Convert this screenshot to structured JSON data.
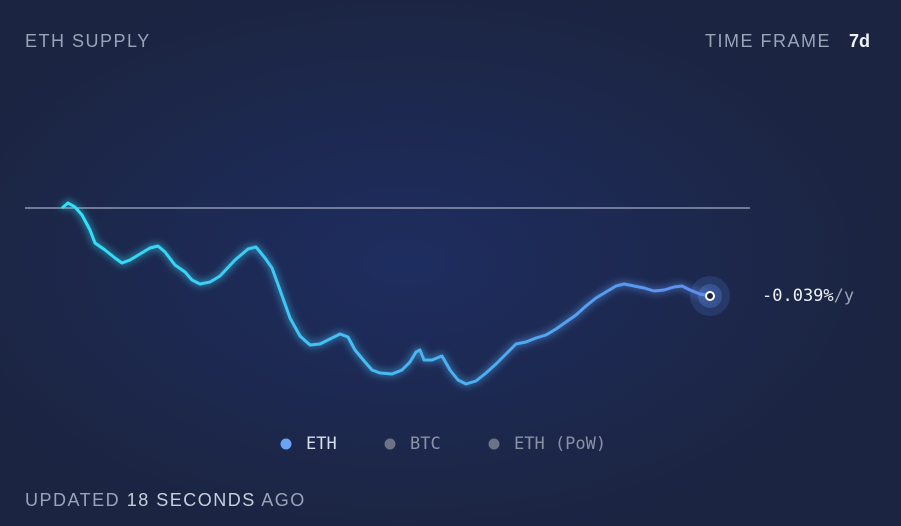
{
  "chart_data": {
    "type": "line",
    "title": "ETH SUPPLY",
    "timeframe_label": "TIME FRAME",
    "timeframe": "7d",
    "x": [
      0,
      6,
      13,
      20,
      28,
      33,
      43,
      53,
      60,
      68,
      78,
      88,
      96,
      103,
      113,
      123,
      130,
      138,
      148,
      158,
      173,
      186,
      194,
      203,
      210,
      218,
      228,
      238,
      248,
      258,
      268,
      278,
      286,
      293,
      303,
      310,
      318,
      330,
      340,
      348,
      354,
      358,
      362,
      370,
      380,
      388,
      396,
      404,
      414,
      424,
      434,
      444,
      454,
      464,
      474,
      484,
      494,
      504,
      514,
      524,
      534,
      544,
      554,
      562,
      572,
      582,
      592,
      602,
      612,
      620,
      628,
      638,
      648
    ],
    "xlim": [
      -37,
      688
    ],
    "series": [
      {
        "name": "ETH",
        "colors": [
          "#2fe3f7",
          "#5f8ff0"
        ],
        "values": [
          0,
          5,
          1,
          -7,
          -22,
          -35,
          -42,
          -50,
          -55,
          -52,
          -46,
          -40,
          -38,
          -44,
          -57,
          -64,
          -72,
          -76,
          -74,
          -68,
          -52,
          -41,
          -39,
          -50,
          -60,
          -82,
          -110,
          -128,
          -137,
          -136,
          -131,
          -126,
          -129,
          -142,
          -154,
          -162,
          -165,
          -166,
          -162,
          -154,
          -144,
          -142,
          -152,
          -152,
          -148,
          -162,
          -172,
          -176,
          -173,
          -165,
          -156,
          -146,
          -136,
          -134,
          -130,
          -127,
          -121,
          -114,
          -107,
          -98,
          -90,
          -84,
          -78,
          -76,
          -78,
          -80,
          -83,
          -82,
          -79,
          -78,
          -82,
          -86,
          -88
        ]
      }
    ],
    "ylim": [
      -180,
      20
    ],
    "baseline": 0,
    "baseline_color": "#8d96b0",
    "end_label": "-0.039%",
    "end_unit": "/y",
    "legend": [
      {
        "label": "ETH",
        "color": "#6aa4f5",
        "text_color": "#d8deea"
      },
      {
        "label": "BTC",
        "color": "#6b7385",
        "text_color": "#8a92a6"
      },
      {
        "label": "ETH (PoW)",
        "color": "#6b7385",
        "text_color": "#8a92a6"
      }
    ]
  },
  "footer": {
    "prefix": "UPDATED",
    "number": 18,
    "unit": "SECONDS",
    "suffix": "AGO"
  }
}
